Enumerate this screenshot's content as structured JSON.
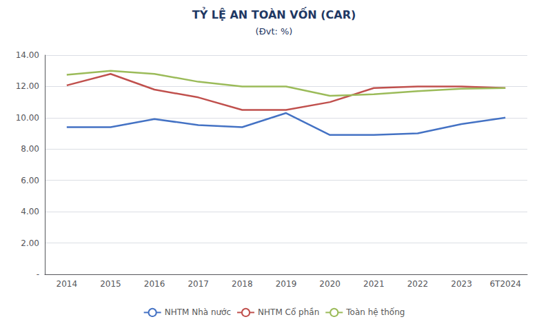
{
  "chart_data": {
    "type": "line",
    "title": "TỶ LỆ AN TOÀN VỐN (CAR)",
    "subtitle": "(Đvt: %)",
    "categories": [
      "2014",
      "2015",
      "2016",
      "2017",
      "2018",
      "2019",
      "2020",
      "2021",
      "2022",
      "2023",
      "6T2024"
    ],
    "series": [
      {
        "name": "NHTM Nhà nước",
        "color": "#4472C4",
        "values": [
          9.4,
          9.4,
          9.92,
          9.53,
          9.4,
          10.3,
          8.9,
          8.9,
          9.0,
          9.6,
          10.0
        ]
      },
      {
        "name": "NHTM Cổ phần",
        "color": "#C0504D",
        "values": [
          12.07,
          12.8,
          11.8,
          11.3,
          10.5,
          10.5,
          11.0,
          11.9,
          12.0,
          12.0,
          11.9
        ]
      },
      {
        "name": "Toàn hệ thống",
        "color": "#9BBB59",
        "values": [
          12.75,
          13.0,
          12.8,
          12.3,
          12.0,
          12.0,
          11.4,
          11.5,
          11.7,
          11.85,
          11.9
        ]
      }
    ],
    "ylim": [
      0,
      14.0
    ],
    "yticks": [
      {
        "value": 0,
        "label": "-"
      },
      {
        "value": 2.0,
        "label": "2.00"
      },
      {
        "value": 4.0,
        "label": "4.00"
      },
      {
        "value": 6.0,
        "label": "6.00"
      },
      {
        "value": 8.0,
        "label": "8.00"
      },
      {
        "value": 10.0,
        "label": "10.00"
      },
      {
        "value": 12.0,
        "label": "12.00"
      },
      {
        "value": 14.0,
        "label": "14.00"
      }
    ],
    "grid": true,
    "legend": "bottom"
  }
}
